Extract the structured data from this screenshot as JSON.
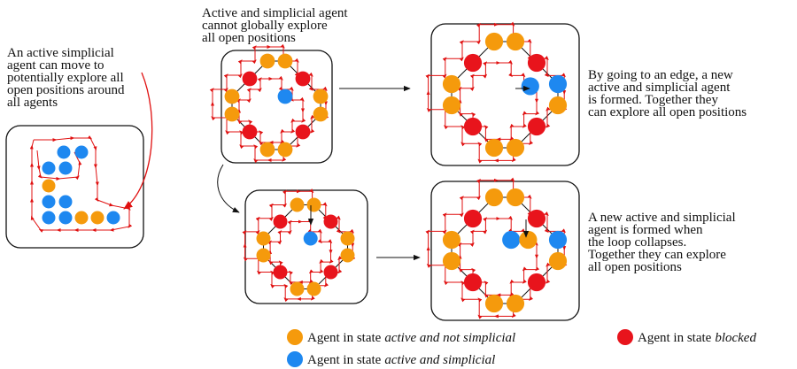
{
  "captions": {
    "left": [
      "An active simplicial",
      "agent can move to",
      "potentially explore all",
      "open positions around",
      "all agents"
    ],
    "top": [
      "Active and simplicial agent",
      "cannot globally explore",
      "all open positions"
    ],
    "right_top": [
      "By going to an edge, a new",
      "active and simplicial agent",
      "is formed. Together they",
      "can explore all open positions"
    ],
    "right_bottom": [
      "A new active and simplicial",
      "agent is formed when",
      "the loop collapses.",
      "Together they can explore",
      "all open positions"
    ]
  },
  "legend": [
    {
      "prefix": "Agent in state",
      "state": "active and not simplicial"
    },
    {
      "prefix": "Agent in state",
      "state": "blocked"
    },
    {
      "prefix": "Agent in state",
      "state": "active and simplicial"
    }
  ]
}
